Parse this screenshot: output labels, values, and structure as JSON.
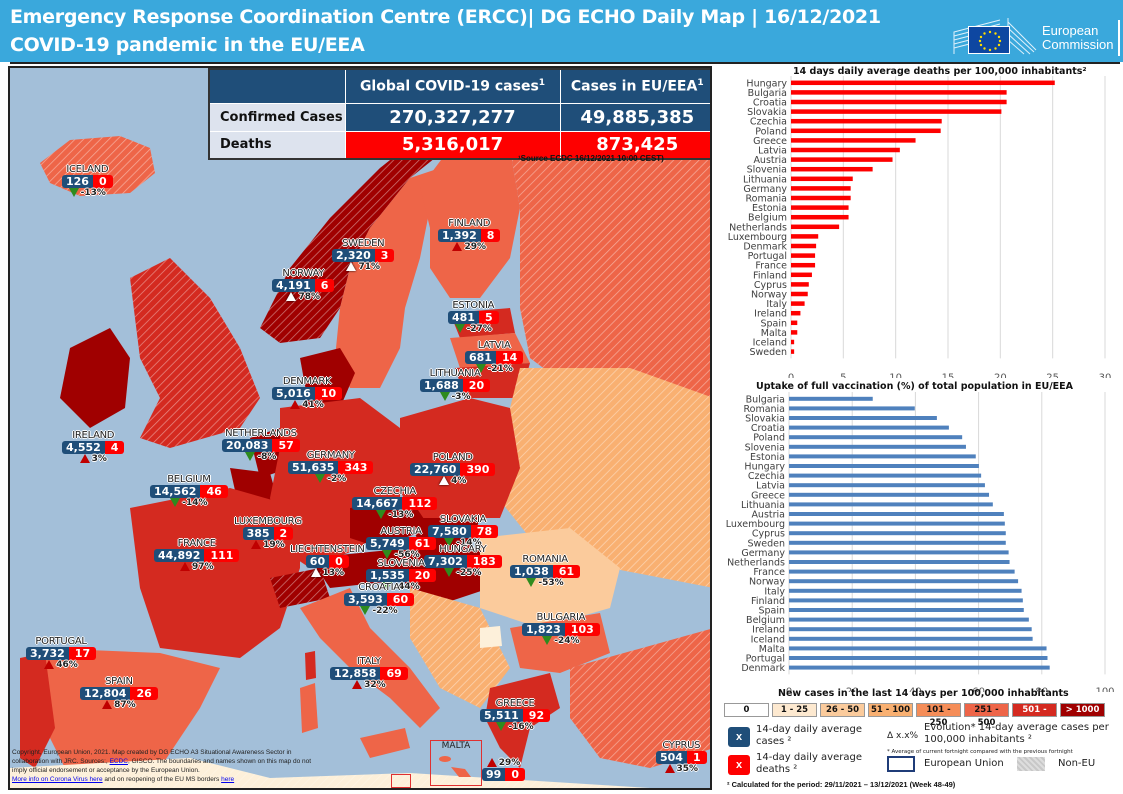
{
  "header": {
    "title_line1": "Emergency Response Coordination Centre (ERCC)| DG ECHO Daily Map | 16/12/2021",
    "title_line2": "COVID-19 pandemic in the EU/EEA",
    "logo_text_1": "European",
    "logo_text_2": "Commission"
  },
  "summary_table": {
    "col_global": "Global COVID-19 cases",
    "col_eu": "Cases in EU/EEA",
    "sup": "1",
    "rows": [
      {
        "label": "Confirmed Cases",
        "global": "270,327,277",
        "eu": "49,885,385"
      },
      {
        "label": "Deaths",
        "global": "5,316,017",
        "eu": "873,425"
      }
    ],
    "source": "¹Source ECDC 16/12/2021 10:00 CEST)"
  },
  "countries": [
    {
      "name": "ICELAND",
      "cases": "126",
      "deaths": "0",
      "trend": "down",
      "evolution": "-13%"
    },
    {
      "name": "NORWAY",
      "cases": "4,191",
      "deaths": "6",
      "trend": "up-white",
      "evolution": "78%"
    },
    {
      "name": "SWEDEN",
      "cases": "2,320",
      "deaths": "3",
      "trend": "up-white",
      "evolution": "71%"
    },
    {
      "name": "FINLAND",
      "cases": "1,392",
      "deaths": "8",
      "trend": "up-red",
      "evolution": "29%"
    },
    {
      "name": "ESTONIA",
      "cases": "481",
      "deaths": "5",
      "trend": "down",
      "evolution": "-27%"
    },
    {
      "name": "LATVIA",
      "cases": "681",
      "deaths": "14",
      "trend": "down",
      "evolution": "-21%"
    },
    {
      "name": "LITHUANIA",
      "cases": "1,688",
      "deaths": "20",
      "trend": "down",
      "evolution": "-3%"
    },
    {
      "name": "DENMARK",
      "cases": "5,016",
      "deaths": "10",
      "trend": "up-red",
      "evolution": "41%"
    },
    {
      "name": "IRELAND",
      "cases": "4,552",
      "deaths": "4",
      "trend": "up-red",
      "evolution": "3%"
    },
    {
      "name": "NETHERLANDS",
      "cases": "20,083",
      "deaths": "57",
      "trend": "down",
      "evolution": "-8%"
    },
    {
      "name": "GERMANY",
      "cases": "51,635",
      "deaths": "343",
      "trend": "down",
      "evolution": "-2%"
    },
    {
      "name": "POLAND",
      "cases": "22,760",
      "deaths": "390",
      "trend": "up-white",
      "evolution": "4%"
    },
    {
      "name": "BELGIUM",
      "cases": "14,562",
      "deaths": "46",
      "trend": "down",
      "evolution": "-14%"
    },
    {
      "name": "CZECHIA",
      "cases": "14,667",
      "deaths": "112",
      "trend": "down",
      "evolution": "-13%"
    },
    {
      "name": "SLOVAKIA",
      "cases": "7,580",
      "deaths": "78",
      "trend": "down",
      "evolution": "-14%"
    },
    {
      "name": "LUXEMBOURG",
      "cases": "385",
      "deaths": "2",
      "trend": "up-red",
      "evolution": "19%"
    },
    {
      "name": "AUSTRIA",
      "cases": "5,749",
      "deaths": "61",
      "trend": "down",
      "evolution": "-56%"
    },
    {
      "name": "HUNGARY",
      "cases": "7,302",
      "deaths": "183",
      "trend": "down",
      "evolution": "-25%"
    },
    {
      "name": "FRANCE",
      "cases": "44,892",
      "deaths": "111",
      "trend": "up-red",
      "evolution": "97%"
    },
    {
      "name": "LIECHTENSTEIN",
      "cases": "60",
      "deaths": "0",
      "trend": "up-white",
      "evolution": "13%"
    },
    {
      "name": "SLOVENIA",
      "cases": "1,535",
      "deaths": "20",
      "trend": "down",
      "evolution": "-44%"
    },
    {
      "name": "ROMANIA",
      "cases": "1,038",
      "deaths": "61",
      "trend": "down",
      "evolution": "-53%"
    },
    {
      "name": "CROATIA",
      "cases": "3,593",
      "deaths": "60",
      "trend": "down",
      "evolution": "-22%"
    },
    {
      "name": "BULGARIA",
      "cases": "1,823",
      "deaths": "103",
      "trend": "down",
      "evolution": "-24%"
    },
    {
      "name": "PORTUGAL",
      "cases": "3,732",
      "deaths": "17",
      "trend": "up-red",
      "evolution": "46%"
    },
    {
      "name": "SPAIN",
      "cases": "12,804",
      "deaths": "26",
      "trend": "up-red",
      "evolution": "87%"
    },
    {
      "name": "ITALY",
      "cases": "12,858",
      "deaths": "69",
      "trend": "up-red",
      "evolution": "32%"
    },
    {
      "name": "GREECE",
      "cases": "5,511",
      "deaths": "92",
      "trend": "down",
      "evolution": "-16%"
    },
    {
      "name": "MALTA",
      "cases": "99",
      "deaths": "0",
      "trend": "up-red",
      "evolution": "29%"
    },
    {
      "name": "CYPRUS",
      "cases": "504",
      "deaths": "1",
      "trend": "up-red",
      "evolution": "35%"
    }
  ],
  "copyright": {
    "text": "Copyright, European Union, 2021. Map created by DG ECHO A3 Situational Awareness Sector in collaboration with JRC. Sources:,",
    "link_ecdc": "ECDC",
    "text2": ", GISCO. The boundaries and names shown on this map do not imply official endorsement or acceptance by the European Union.",
    "link_more": "More info on Corona Virus here",
    "text3": " and on reopening of the EU MS borders ",
    "link_here": "here"
  },
  "chart_data": [
    {
      "type": "bar",
      "orientation": "horizontal",
      "title": "14 days daily average deaths per 100,000 inhabitants²",
      "categories": [
        "Hungary",
        "Bulgaria",
        "Croatia",
        "Slovakia",
        "Czechia",
        "Poland",
        "Greece",
        "Latvia",
        "Austria",
        "Slovenia",
        "Lithuania",
        "Germany",
        "Romania",
        "Estonia",
        "Belgium",
        "Netherlands",
        "Luxembourg",
        "Denmark",
        "Portugal",
        "France",
        "Finland",
        "Cyprus",
        "Norway",
        "Italy",
        "Ireland",
        "Spain",
        "Malta",
        "Iceland",
        "Sweden"
      ],
      "values": [
        25.2,
        20.6,
        20.6,
        20.1,
        14.4,
        14.3,
        11.9,
        10.4,
        9.7,
        7.8,
        5.9,
        5.7,
        5.7,
        5.5,
        5.5,
        4.6,
        2.6,
        2.4,
        2.3,
        2.3,
        2.0,
        1.7,
        1.6,
        1.3,
        0.9,
        0.6,
        0.6,
        0.3,
        0.3
      ],
      "xlim": [
        0,
        30
      ],
      "xticks": [
        0,
        5,
        10,
        15,
        20,
        25,
        30
      ],
      "color": "#fe0000",
      "grid": true
    },
    {
      "type": "bar",
      "orientation": "horizontal",
      "title": "Uptake of full vaccination (%) of total population in EU/EEA",
      "xlabel": "New cases in the last 14 days per 100,000 inhabitants",
      "categories": [
        "Bulgaria",
        "Romania",
        "Slovakia",
        "Croatia",
        "Poland",
        "Slovenia",
        "Estonia",
        "Hungary",
        "Czechia",
        "Latvia",
        "Greece",
        "Lithuania",
        "Austria",
        "Luxembourg",
        "Cyprus",
        "Sweden",
        "Germany",
        "Netherlands",
        "France",
        "Norway",
        "Italy",
        "Finland",
        "Spain",
        "Belgium",
        "Ireland",
        "Iceland",
        "Malta",
        "Portugal",
        "Denmark"
      ],
      "values": [
        26.5,
        39.8,
        46.8,
        50.6,
        54.8,
        56.0,
        59.1,
        60.1,
        60.8,
        62.0,
        63.3,
        64.5,
        68.0,
        68.3,
        68.6,
        68.6,
        69.5,
        69.8,
        71.4,
        72.5,
        73.6,
        74.0,
        74.3,
        75.9,
        76.8,
        77.1,
        81.5,
        81.8,
        82.5
      ],
      "xlim": [
        0,
        100
      ],
      "xticks": [
        0,
        20,
        40,
        60,
        80,
        100
      ],
      "color": "#4f81bd",
      "grid": true
    }
  ],
  "legend": {
    "scale": [
      {
        "label": "0",
        "color": "#ffffff",
        "text": "#111"
      },
      {
        "label": "1 - 25",
        "color": "#fde9d0",
        "text": "#111"
      },
      {
        "label": "26 - 50",
        "color": "#fbcb9c",
        "text": "#111"
      },
      {
        "label": "51 - 100",
        "color": "#f9b071",
        "text": "#111"
      },
      {
        "label": "101 - 250",
        "color": "#f58d58",
        "text": "#111"
      },
      {
        "label": "251 - 500",
        "color": "#ee6548",
        "text": "#111"
      },
      {
        "label": "501 - 1000",
        "color": "#d42a20",
        "text": "#fff"
      },
      {
        "label": "> 1000",
        "color": "#a00000",
        "text": "#fff"
      }
    ],
    "cases_box": "x",
    "cases_label": "14-day daily average cases ²",
    "deaths_box": "x",
    "deaths_label": "14-day daily average deaths ²",
    "evolution_symbol": "Δ x.x%",
    "evolution_label": "Evolution* 14-day average cases per 100,000 inhabitants ²",
    "evolution_note": "* Average of current fortnight compared with the previous fortnight",
    "eu_label": "European Union",
    "non_eu_label": "Non-EU",
    "footnote": "² Calculated for the period: 29/11/2021 – 13/12/2021 (Week 48-49)"
  },
  "colors": {
    "header_bg": "#3aa8dc",
    "navy": "#1f4e79",
    "red": "#fe0000",
    "sea": "#a3bfd9"
  }
}
